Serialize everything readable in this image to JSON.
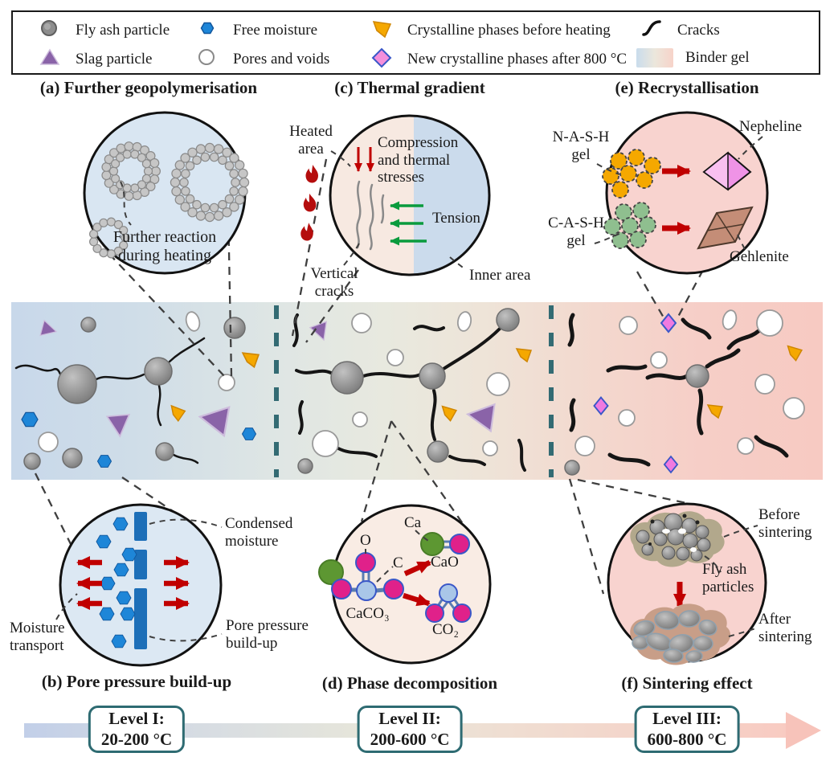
{
  "legend": {
    "items": [
      {
        "icon": "fly-ash-icon",
        "label": "Fly ash particle"
      },
      {
        "icon": "free-moisture-icon",
        "label": "Free moisture"
      },
      {
        "icon": "crystalline-before-icon",
        "label": "Crystalline phases before heating"
      },
      {
        "icon": "cracks-icon",
        "label": "Cracks"
      },
      {
        "icon": "slag-particle-icon",
        "label": "Slag particle"
      },
      {
        "icon": "pores-voids-icon",
        "label": "Pores and voids"
      },
      {
        "icon": "new-crystalline-icon",
        "label": "New crystalline phases after 800 °C"
      },
      {
        "icon": "binder-gel-icon",
        "label": "Binder gel"
      }
    ]
  },
  "panels": {
    "a": {
      "title": "(a) Further geopolymerisation",
      "reaction_label": "Further reaction\nduring heating"
    },
    "b": {
      "title": "(b) Pore pressure build-up",
      "condensed_label": "Condensed\nmoisture",
      "pore_pressure_label": "Pore pressure\nbuild-up",
      "moisture_transport_label": "Moisture\ntransport"
    },
    "c": {
      "title": "(c) Thermal gradient",
      "heated_area_label": "Heated\narea",
      "compression_label": "Compression\nand thermal\nstresses",
      "tension_label": "Tension",
      "vertical_cracks_label": "Vertical\ncracks",
      "inner_area_label": "Inner area"
    },
    "d": {
      "title": "(d) Phase decomposition",
      "o_label": "O",
      "c_label": "C",
      "ca_label": "Ca",
      "caco3_label": "CaCO₃",
      "cao_label": "CaO",
      "co2_label": "CO₂"
    },
    "e": {
      "title": "(e) Recrystallisation",
      "nash_label": "N-A-S-H\ngel",
      "cash_label": "C-A-S-H\ngel",
      "nepheline_label": "Nepheline",
      "gehlenite_label": "Gehlenite"
    },
    "f": {
      "title": "(f) Sintering effect",
      "before_label": "Before\nsintering",
      "fly_ash_label": "Fly ash\nparticles",
      "after_label": "After\nsintering"
    }
  },
  "timeline": {
    "levels": [
      {
        "title": "Level I:",
        "range": "20-200 °C"
      },
      {
        "title": "Level II:",
        "range": "200-600 °C"
      },
      {
        "title": "Level III:",
        "range": "600-800 °C"
      }
    ]
  },
  "colors": {
    "band_cold": "#c8d8ea",
    "band_hot": "#f7cac2",
    "divider_teal": "#336b73",
    "level_box_border": "#2e6b72",
    "crack_black": "#151515",
    "fly_ash_gray": "#8d8d8d",
    "slag_purple": "#8a63a8",
    "moisture_blue": "#1e86d8",
    "crystalline_orange": "#f5a800",
    "new_crystalline_pink": "#f07ae0",
    "arrow_red": "#c00000",
    "tension_green": "#0a9b3d",
    "flame_red": "#b50d0d"
  }
}
